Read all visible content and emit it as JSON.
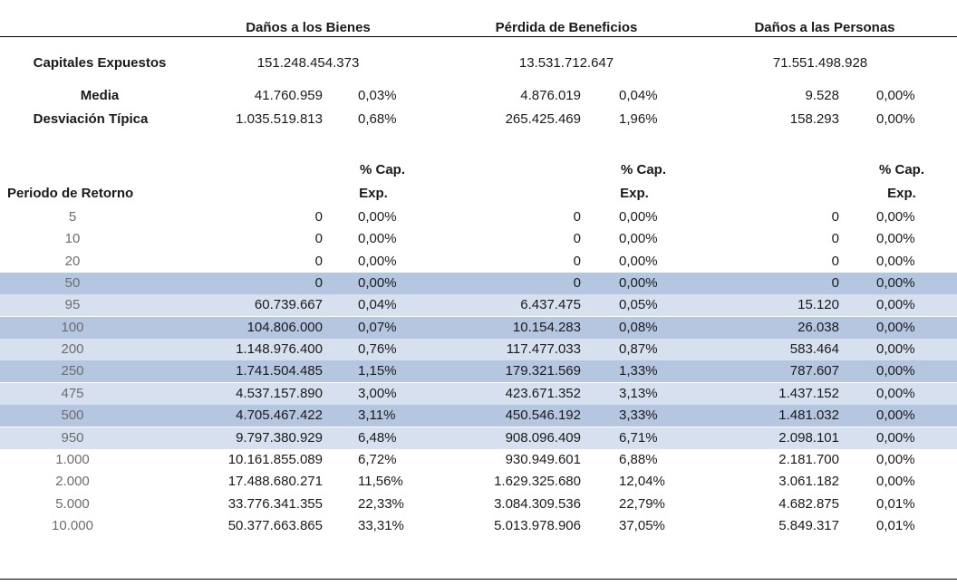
{
  "headers": {
    "bienes": "Daños a los Bienes",
    "beneficios": "Pérdida de Beneficios",
    "personas": "Daños a las Personas"
  },
  "capitales": {
    "label": "Capitales Expuestos",
    "bienes": "151.248.454.373",
    "beneficios": "13.531.712.647",
    "personas": "71.551.498.928"
  },
  "stats": [
    {
      "label": "Media",
      "b_val": "41.760.959",
      "b_pct": "0,03%",
      "p_val": "4.876.019",
      "p_pct": "0,04%",
      "d_val": "9.528",
      "d_pct": "0,00%"
    },
    {
      "label": "Desviación Típica",
      "b_val": "1.035.519.813",
      "b_pct": "0,68%",
      "p_val": "265.425.469",
      "p_pct": "1,96%",
      "d_val": "158.293",
      "d_pct": "0,00%"
    }
  ],
  "pct_header_line1": "% Cap.",
  "pct_header_line2": "Exp.",
  "periodo_label": "Periodo de Retorno",
  "colors": {
    "band_dark": "#b5c6e0",
    "band_light": "#d6e0ef"
  },
  "rows": [
    {
      "period": "5",
      "b_val": "0",
      "b_pct": "0,00%",
      "p_val": "0",
      "p_pct": "0,00%",
      "d_val": "0",
      "d_pct": "0,00%",
      "band": "none"
    },
    {
      "period": "10",
      "b_val": "0",
      "b_pct": "0,00%",
      "p_val": "0",
      "p_pct": "0,00%",
      "d_val": "0",
      "d_pct": "0,00%",
      "band": "none"
    },
    {
      "period": "20",
      "b_val": "0",
      "b_pct": "0,00%",
      "p_val": "0",
      "p_pct": "0,00%",
      "d_val": "0",
      "d_pct": "0,00%",
      "band": "none"
    },
    {
      "period": "50",
      "b_val": "0",
      "b_pct": "0,00%",
      "p_val": "0",
      "p_pct": "0,00%",
      "d_val": "0",
      "d_pct": "0,00%",
      "band": "dark"
    },
    {
      "period": "95",
      "b_val": "60.739.667",
      "b_pct": "0,04%",
      "p_val": "6.437.475",
      "p_pct": "0,05%",
      "d_val": "15.120",
      "d_pct": "0,00%",
      "band": "light"
    },
    {
      "period": "100",
      "b_val": "104.806.000",
      "b_pct": "0,07%",
      "p_val": "10.154.283",
      "p_pct": "0,08%",
      "d_val": "26.038",
      "d_pct": "0,00%",
      "band": "dark"
    },
    {
      "period": "200",
      "b_val": "1.148.976.400",
      "b_pct": "0,76%",
      "p_val": "117.477.033",
      "p_pct": "0,87%",
      "d_val": "583.464",
      "d_pct": "0,00%",
      "band": "light"
    },
    {
      "period": "250",
      "b_val": "1.741.504.485",
      "b_pct": "1,15%",
      "p_val": "179.321.569",
      "p_pct": "1,33%",
      "d_val": "787.607",
      "d_pct": "0,00%",
      "band": "dark"
    },
    {
      "period": "475",
      "b_val": "4.537.157.890",
      "b_pct": "3,00%",
      "p_val": "423.671.352",
      "p_pct": "3,13%",
      "d_val": "1.437.152",
      "d_pct": "0,00%",
      "band": "light"
    },
    {
      "period": "500",
      "b_val": "4.705.467.422",
      "b_pct": "3,11%",
      "p_val": "450.546.192",
      "p_pct": "3,33%",
      "d_val": "1.481.032",
      "d_pct": "0,00%",
      "band": "dark"
    },
    {
      "period": "950",
      "b_val": "9.797.380.929",
      "b_pct": "6,48%",
      "p_val": "908.096.409",
      "p_pct": "6,71%",
      "d_val": "2.098.101",
      "d_pct": "0,00%",
      "band": "light"
    },
    {
      "period": "1.000",
      "b_val": "10.161.855.089",
      "b_pct": "6,72%",
      "p_val": "930.949.601",
      "p_pct": "6,88%",
      "d_val": "2.181.700",
      "d_pct": "0,00%",
      "band": "none"
    },
    {
      "period": "2.000",
      "b_val": "17.488.680.271",
      "b_pct": "11,56%",
      "p_val": "1.629.325.680",
      "p_pct": "12,04%",
      "d_val": "3.061.182",
      "d_pct": "0,00%",
      "band": "none"
    },
    {
      "period": "5.000",
      "b_val": "33.776.341.355",
      "b_pct": "22,33%",
      "p_val": "3.084.309.536",
      "p_pct": "22,79%",
      "d_val": "4.682.875",
      "d_pct": "0,01%",
      "band": "none"
    },
    {
      "period": "10.000",
      "b_val": "50.377.663.865",
      "b_pct": "33,31%",
      "p_val": "5.013.978.906",
      "p_pct": "37,05%",
      "d_val": "5.849.317",
      "d_pct": "0,01%",
      "band": "none"
    }
  ]
}
